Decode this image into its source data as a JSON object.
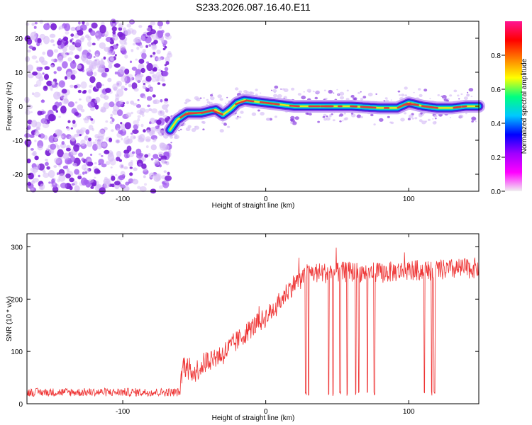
{
  "title": "S233.2026.087.16.40.E11",
  "colors": {
    "signal_band": "#e03a3a",
    "background_noise": "#8a2be2",
    "snr_line": "#ee3333",
    "colormap": [
      "#f0f0f0",
      "#ff00ff",
      "#a000ff",
      "#0000ff",
      "#00c8ff",
      "#00ff80",
      "#ffff00",
      "#ff8000",
      "#ff0000",
      "#ff1493"
    ]
  },
  "chart_data": [
    {
      "type": "heatmap",
      "title": "S233.2026.087.16.40.E11",
      "xlabel": "Height of straight line (km)",
      "ylabel": "Frequency (Hz)",
      "xlim": [
        -167,
        149
      ],
      "ylim": [
        -25,
        25
      ],
      "xticks": [
        -100,
        0,
        100
      ],
      "yticks": [
        -20,
        -10,
        0,
        10,
        20
      ],
      "noise_region_x": [
        -167,
        -67
      ],
      "signal_track": {
        "x": [
          -67,
          -62,
          -55,
          -45,
          -35,
          -30,
          -25,
          -20,
          -15,
          -10,
          0,
          10,
          20,
          40,
          60,
          80,
          92,
          100,
          110,
          120,
          130,
          140,
          149
        ],
        "freq": [
          -7,
          -4,
          -2,
          -2,
          -1,
          -2.5,
          -1,
          1,
          1.8,
          1.5,
          1,
          0.5,
          0,
          0,
          0,
          -0.5,
          -0.5,
          1,
          0,
          -0.5,
          -0.5,
          0,
          0
        ]
      },
      "colorbar": {
        "label": "Normalized spectral amplitude",
        "range": [
          0,
          1
        ],
        "ticks": [
          "0.0",
          "0.2",
          "0.4",
          "0.6",
          "0.8"
        ]
      }
    },
    {
      "type": "line",
      "xlabel": "Height of straight line (km)",
      "ylabel": "SNR (10 * v/v)",
      "xlim": [
        -167,
        149
      ],
      "ylim": [
        0,
        325
      ],
      "xticks": [
        -100,
        0,
        100
      ],
      "yticks": [
        0,
        100,
        200,
        300
      ],
      "series": [
        {
          "name": "SNR",
          "trend_x": [
            -167,
            -60,
            -58,
            -50,
            -40,
            -30,
            -20,
            -10,
            0,
            10,
            15,
            20,
            30,
            40,
            60,
            80,
            100,
            120,
            149
          ],
          "trend_y": [
            22,
            22,
            75,
            60,
            85,
            95,
            120,
            145,
            165,
            195,
            215,
            230,
            250,
            250,
            252,
            250,
            255,
            255,
            260
          ],
          "dropouts_x": [
            28,
            30,
            44,
            47,
            52,
            57,
            63,
            65,
            71,
            76,
            111,
            116,
            118
          ],
          "dropout_min": 15
        }
      ]
    }
  ]
}
